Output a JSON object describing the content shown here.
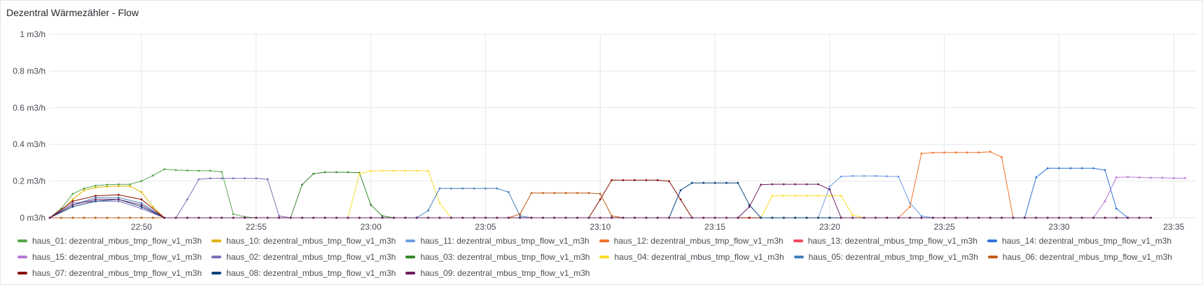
{
  "panel": {
    "title": "Dezentral Wärmezähler - Flow"
  },
  "chart_data": {
    "type": "line",
    "title": "Dezentral Wärmezähler - Flow",
    "xlabel": "",
    "ylabel": "",
    "ylim": [
      0,
      1
    ],
    "xlim": [
      "22:46",
      "23:36"
    ],
    "y_ticks": [
      {
        "value": 0,
        "label": "0 m3/h"
      },
      {
        "value": 0.2,
        "label": "0.2 m3/h"
      },
      {
        "value": 0.4,
        "label": "0.4 m3/h"
      },
      {
        "value": 0.6,
        "label": "0.6 m3/h"
      },
      {
        "value": 0.8,
        "label": "0.8 m3/h"
      },
      {
        "value": 1,
        "label": "1 m3/h"
      }
    ],
    "x_ticks": [
      "22:50",
      "22:55",
      "23:00",
      "23:05",
      "23:10",
      "23:15",
      "23:20",
      "23:25",
      "23:30",
      "23:35"
    ],
    "grid": true,
    "legend_position": "bottom",
    "series": [
      {
        "name": "haus_01: dezentral_mbus_tmp_flow_v1_m3h",
        "color": "#56a64b",
        "points": [
          [
            "22:46:00",
            0
          ],
          [
            "22:46:30",
            0.05
          ],
          [
            "22:47:00",
            0.13
          ],
          [
            "22:47:30",
            0.16
          ],
          [
            "22:48:00",
            0.175
          ],
          [
            "22:48:30",
            0.18
          ],
          [
            "22:49:00",
            0.182
          ],
          [
            "22:49:30",
            0.182
          ],
          [
            "22:50:00",
            0.2
          ],
          [
            "22:50:30",
            0.23
          ],
          [
            "22:51:00",
            0.265
          ],
          [
            "22:51:30",
            0.26
          ],
          [
            "22:52:00",
            0.258
          ],
          [
            "22:52:30",
            0.256
          ],
          [
            "22:53:00",
            0.256
          ],
          [
            "22:53:30",
            0.25
          ],
          [
            "22:54:00",
            0.02
          ],
          [
            "22:54:30",
            0.005
          ],
          [
            "22:55:00",
            0
          ],
          [
            "23:34:00",
            0
          ]
        ]
      },
      {
        "name": "haus_10: dezentral_mbus_tmp_flow_v1_m3h",
        "color": "#e0b400",
        "points": [
          [
            "22:46:00",
            0
          ],
          [
            "22:46:30",
            0.04
          ],
          [
            "22:47:00",
            0.1
          ],
          [
            "22:47:30",
            0.15
          ],
          [
            "22:48:00",
            0.165
          ],
          [
            "22:48:30",
            0.17
          ],
          [
            "22:49:00",
            0.172
          ],
          [
            "22:49:30",
            0.172
          ],
          [
            "22:50:00",
            0.14
          ],
          [
            "22:50:30",
            0.06
          ],
          [
            "22:51:00",
            0
          ],
          [
            "23:34:00",
            0
          ]
        ]
      },
      {
        "name": "haus_11: dezentral_mbus_tmp_flow_v1_m3h",
        "color": "#6e9fe6",
        "points": [
          [
            "22:46:00",
            0
          ],
          [
            "23:19:30",
            0
          ],
          [
            "23:20:00",
            0.17
          ],
          [
            "23:20:30",
            0.225
          ],
          [
            "23:21:00",
            0.228
          ],
          [
            "23:21:30",
            0.228
          ],
          [
            "23:22:00",
            0.228
          ],
          [
            "23:22:30",
            0.226
          ],
          [
            "23:23:00",
            0.224
          ],
          [
            "23:23:30",
            0.08
          ],
          [
            "23:24:00",
            0.01
          ],
          [
            "23:24:30",
            0
          ],
          [
            "23:34:00",
            0
          ]
        ]
      },
      {
        "name": "haus_12: dezentral_mbus_tmp_flow_v1_m3h",
        "color": "#f2722b",
        "points": [
          [
            "22:46:00",
            0
          ],
          [
            "23:23:00",
            0
          ],
          [
            "23:23:30",
            0.06
          ],
          [
            "23:24:00",
            0.35
          ],
          [
            "23:24:30",
            0.355
          ],
          [
            "23:25:00",
            0.356
          ],
          [
            "23:25:30",
            0.356
          ],
          [
            "23:26:00",
            0.356
          ],
          [
            "23:26:30",
            0.356
          ],
          [
            "23:27:00",
            0.36
          ],
          [
            "23:27:30",
            0.33
          ],
          [
            "23:28:00",
            0
          ],
          [
            "23:34:00",
            0
          ]
        ]
      },
      {
        "name": "haus_13: dezentral_mbus_tmp_flow_v1_m3h",
        "color": "#f2495c",
        "points": [
          [
            "22:46:00",
            0
          ],
          [
            "23:34:00",
            0
          ]
        ]
      },
      {
        "name": "haus_14: dezentral_mbus_tmp_flow_v1_m3h",
        "color": "#3274d9",
        "points": [
          [
            "22:46:00",
            0
          ],
          [
            "23:28:30",
            0
          ],
          [
            "23:29:00",
            0.22
          ],
          [
            "23:29:30",
            0.27
          ],
          [
            "23:30:00",
            0.27
          ],
          [
            "23:30:30",
            0.27
          ],
          [
            "23:31:00",
            0.27
          ],
          [
            "23:31:30",
            0.27
          ],
          [
            "23:32:00",
            0.26
          ],
          [
            "23:32:30",
            0.05
          ],
          [
            "23:33:00",
            0
          ],
          [
            "23:34:00",
            0
          ]
        ]
      },
      {
        "name": "haus_15: dezentral_mbus_tmp_flow_v1_m3h",
        "color": "#b877d9",
        "points": [
          [
            "22:46:00",
            0
          ],
          [
            "23:31:30",
            0
          ],
          [
            "23:32:00",
            0.09
          ],
          [
            "23:32:30",
            0.22
          ],
          [
            "23:33:00",
            0.222
          ],
          [
            "23:33:30",
            0.22
          ],
          [
            "23:34:00",
            0.218
          ],
          [
            "23:34:30",
            0.218
          ],
          [
            "23:35:00",
            0.216
          ],
          [
            "23:35:30",
            0.216
          ]
        ]
      },
      {
        "name": "haus_02: dezentral_mbus_tmp_flow_v1_m3h",
        "color": "#806eb7",
        "points": [
          [
            "22:46:00",
            0
          ],
          [
            "22:47:00",
            0.08
          ],
          [
            "22:48:00",
            0.09
          ],
          [
            "22:49:00",
            0.09
          ],
          [
            "22:50:00",
            0.05
          ],
          [
            "22:51:00",
            0
          ],
          [
            "22:51:30",
            0
          ],
          [
            "22:52:00",
            0.1
          ],
          [
            "22:52:30",
            0.21
          ],
          [
            "22:53:00",
            0.215
          ],
          [
            "22:53:30",
            0.215
          ],
          [
            "22:54:00",
            0.215
          ],
          [
            "22:54:30",
            0.215
          ],
          [
            "22:55:00",
            0.215
          ],
          [
            "22:55:30",
            0.21
          ],
          [
            "22:56:00",
            0.01
          ],
          [
            "22:56:30",
            0
          ],
          [
            "23:34:00",
            0
          ]
        ]
      },
      {
        "name": "haus_03: dezentral_mbus_tmp_flow_v1_m3h",
        "color": "#37872d",
        "points": [
          [
            "22:46:00",
            0
          ],
          [
            "22:56:30",
            0
          ],
          [
            "22:57:00",
            0.18
          ],
          [
            "22:57:30",
            0.24
          ],
          [
            "22:58:00",
            0.248
          ],
          [
            "22:58:30",
            0.248
          ],
          [
            "22:59:00",
            0.248
          ],
          [
            "22:59:30",
            0.245
          ],
          [
            "23:00:00",
            0.07
          ],
          [
            "23:00:30",
            0.01
          ],
          [
            "23:01:00",
            0
          ],
          [
            "23:34:00",
            0
          ]
        ]
      },
      {
        "name": "haus_04: dezentral_mbus_tmp_flow_v1_m3h",
        "color": "#fade2a",
        "points": [
          [
            "22:46:00",
            0
          ],
          [
            "22:59:00",
            0
          ],
          [
            "22:59:30",
            0.24
          ],
          [
            "23:00:00",
            0.255
          ],
          [
            "23:00:30",
            0.256
          ],
          [
            "23:01:00",
            0.256
          ],
          [
            "23:01:30",
            0.256
          ],
          [
            "23:02:00",
            0.256
          ],
          [
            "23:02:30",
            0.256
          ],
          [
            "23:03:00",
            0.08
          ],
          [
            "23:03:30",
            0
          ],
          [
            "23:17:00",
            0
          ],
          [
            "23:17:30",
            0.12
          ],
          [
            "23:18:00",
            0.12
          ],
          [
            "23:18:30",
            0.12
          ],
          [
            "23:19:00",
            0.12
          ],
          [
            "23:19:30",
            0.12
          ],
          [
            "23:20:00",
            0.12
          ],
          [
            "23:20:30",
            0.12
          ],
          [
            "23:21:00",
            0.015
          ],
          [
            "23:21:30",
            0
          ],
          [
            "23:34:00",
            0
          ]
        ]
      },
      {
        "name": "haus_05: dezentral_mbus_tmp_flow_v1_m3h",
        "color": "#447ebc",
        "points": [
          [
            "22:46:00",
            0
          ],
          [
            "22:47:00",
            0.07
          ],
          [
            "22:48:00",
            0.11
          ],
          [
            "22:49:00",
            0.11
          ],
          [
            "22:50:00",
            0.08
          ],
          [
            "22:51:00",
            0
          ],
          [
            "23:02:00",
            0
          ],
          [
            "23:02:30",
            0.04
          ],
          [
            "23:03:00",
            0.16
          ],
          [
            "23:03:30",
            0.16
          ],
          [
            "23:04:00",
            0.16
          ],
          [
            "23:04:30",
            0.16
          ],
          [
            "23:05:00",
            0.16
          ],
          [
            "23:05:30",
            0.16
          ],
          [
            "23:06:00",
            0.14
          ],
          [
            "23:06:30",
            0.01
          ],
          [
            "23:07:00",
            0
          ],
          [
            "23:34:00",
            0
          ]
        ]
      },
      {
        "name": "haus_06: dezentral_mbus_tmp_flow_v1_m3h",
        "color": "#c15c17",
        "points": [
          [
            "22:46:00",
            0
          ],
          [
            "23:06:00",
            0
          ],
          [
            "23:06:30",
            0.02
          ],
          [
            "23:07:00",
            0.135
          ],
          [
            "23:07:30",
            0.135
          ],
          [
            "23:08:00",
            0.135
          ],
          [
            "23:08:30",
            0.135
          ],
          [
            "23:09:00",
            0.135
          ],
          [
            "23:09:30",
            0.135
          ],
          [
            "23:10:00",
            0.13
          ],
          [
            "23:10:30",
            0.01
          ],
          [
            "23:11:00",
            0
          ],
          [
            "23:34:00",
            0
          ]
        ]
      },
      {
        "name": "haus_07: dezentral_mbus_tmp_flow_v1_m3h",
        "color": "#890f02",
        "points": [
          [
            "22:46:00",
            0
          ],
          [
            "22:47:00",
            0.09
          ],
          [
            "22:48:00",
            0.12
          ],
          [
            "22:49:00",
            0.125
          ],
          [
            "22:50:00",
            0.1
          ],
          [
            "22:51:00",
            0
          ],
          [
            "23:09:30",
            0
          ],
          [
            "23:10:00",
            0.1
          ],
          [
            "23:10:30",
            0.205
          ],
          [
            "23:11:00",
            0.205
          ],
          [
            "23:11:30",
            0.205
          ],
          [
            "23:12:00",
            0.205
          ],
          [
            "23:12:30",
            0.205
          ],
          [
            "23:13:00",
            0.2
          ],
          [
            "23:13:30",
            0.1
          ],
          [
            "23:14:00",
            0
          ],
          [
            "23:34:00",
            0
          ]
        ]
      },
      {
        "name": "haus_08: dezentral_mbus_tmp_flow_v1_m3h",
        "color": "#0a437c",
        "points": [
          [
            "22:46:00",
            0
          ],
          [
            "22:47:00",
            0.06
          ],
          [
            "22:48:00",
            0.09
          ],
          [
            "22:49:00",
            0.1
          ],
          [
            "22:50:00",
            0.06
          ],
          [
            "22:51:00",
            0
          ],
          [
            "23:13:00",
            0
          ],
          [
            "23:13:30",
            0.15
          ],
          [
            "23:14:00",
            0.19
          ],
          [
            "23:14:30",
            0.19
          ],
          [
            "23:15:00",
            0.19
          ],
          [
            "23:15:30",
            0.19
          ],
          [
            "23:16:00",
            0.19
          ],
          [
            "23:16:30",
            0.07
          ],
          [
            "23:17:00",
            0
          ],
          [
            "23:34:00",
            0
          ]
        ]
      },
      {
        "name": "haus_09: dezentral_mbus_tmp_flow_v1_m3h",
        "color": "#6d1f62",
        "points": [
          [
            "22:46:00",
            0
          ],
          [
            "22:47:00",
            0.07
          ],
          [
            "22:48:00",
            0.1
          ],
          [
            "22:49:00",
            0.1
          ],
          [
            "22:50:00",
            0.07
          ],
          [
            "22:51:00",
            0
          ],
          [
            "23:16:00",
            0
          ],
          [
            "23:16:30",
            0.06
          ],
          [
            "23:17:00",
            0.18
          ],
          [
            "23:17:30",
            0.183
          ],
          [
            "23:18:00",
            0.183
          ],
          [
            "23:18:30",
            0.183
          ],
          [
            "23:19:00",
            0.183
          ],
          [
            "23:19:30",
            0.183
          ],
          [
            "23:20:00",
            0.155
          ],
          [
            "23:20:30",
            0
          ],
          [
            "23:34:00",
            0
          ]
        ]
      }
    ]
  }
}
